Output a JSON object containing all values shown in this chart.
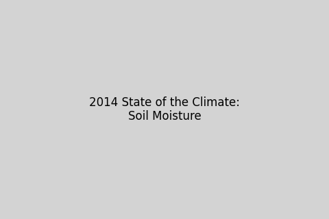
{
  "title": "2014 State of the Climate: Soil Moisture",
  "background_color": "#d3d3d3",
  "land_base_color": "#f5f5f5",
  "border_color": "#333333",
  "border_linewidth": 0.5,
  "no_data_color": "#c0c0c0",
  "wet_color_light": "#a8d8c8",
  "wet_color_mid": "#3a9a8a",
  "wet_color_dark": "#1a6a5a",
  "dry_color_light": "#e8c880",
  "dry_color_mid": "#c8882a",
  "dry_color_dark": "#8a4a10",
  "figsize": [
    4.8,
    3.2
  ],
  "dpi": 100,
  "extent": [
    -20,
    95,
    -40,
    65
  ],
  "noise_seed": 42,
  "num_dots": 8000,
  "dot_size": 2.5,
  "dot_alpha": 0.75
}
